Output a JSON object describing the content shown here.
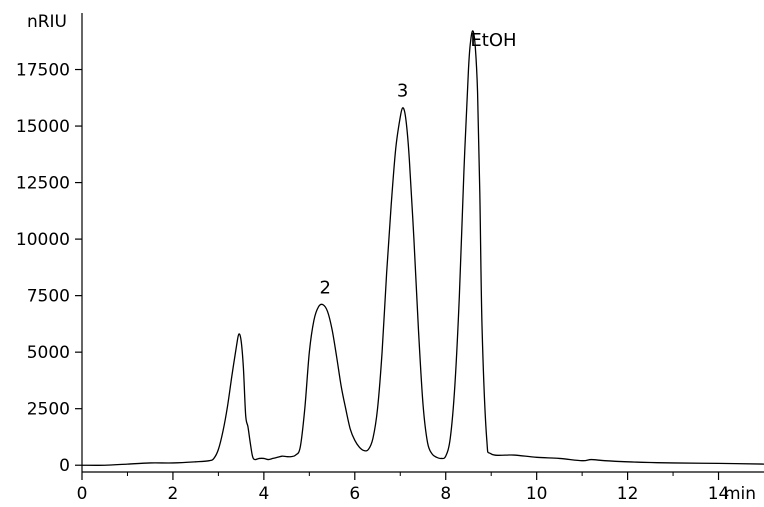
{
  "chart_data": {
    "type": "line",
    "title": "",
    "xlabel": "min",
    "ylabel": "nRIU",
    "xlim": [
      0,
      15
    ],
    "ylim": [
      -300,
      20000
    ],
    "x_ticks": [
      0,
      2,
      4,
      6,
      8,
      10,
      12,
      14
    ],
    "y_ticks": [
      0,
      2500,
      5000,
      7500,
      10000,
      12500,
      15000,
      17500
    ],
    "x_tick_labels": [
      "0",
      "2",
      "4",
      "6",
      "8",
      "10",
      "12",
      "14"
    ],
    "y_tick_labels": [
      "0",
      "2500",
      "5000",
      "7500",
      "10000",
      "12500",
      "15000",
      "17500"
    ],
    "grid": false,
    "legend": "none",
    "line_color": "#000000",
    "series": [
      {
        "x": [
          0.0,
          0.5,
          1.0,
          1.5,
          2.0,
          2.5,
          2.8,
          2.9,
          3.0,
          3.1,
          3.2,
          3.3,
          3.4,
          3.45,
          3.5,
          3.55,
          3.6,
          3.65,
          3.7,
          3.75,
          3.8,
          3.9,
          4.0,
          4.1,
          4.2,
          4.3,
          4.4,
          4.5,
          4.6,
          4.7,
          4.8,
          4.9,
          5.0,
          5.1,
          5.2,
          5.3,
          5.4,
          5.5,
          5.6,
          5.7,
          5.8,
          5.9,
          6.0,
          6.1,
          6.2,
          6.3,
          6.4,
          6.5,
          6.6,
          6.7,
          6.8,
          6.9,
          7.0,
          7.05,
          7.1,
          7.15,
          7.2,
          7.3,
          7.4,
          7.5,
          7.6,
          7.7,
          7.8,
          7.9,
          8.0,
          8.1,
          8.2,
          8.3,
          8.4,
          8.5,
          8.55,
          8.6,
          8.65,
          8.7,
          8.75,
          8.8,
          8.9,
          9.0,
          9.5,
          10.0,
          10.5,
          11.0,
          11.2,
          11.5,
          12.0,
          12.5,
          13.0,
          14.0,
          15.0
        ],
        "y": [
          0,
          0,
          50,
          100,
          100,
          150,
          200,
          300,
          700,
          1500,
          2600,
          4000,
          5300,
          5800,
          5500,
          4300,
          2200,
          1700,
          1000,
          400,
          250,
          300,
          300,
          250,
          300,
          350,
          400,
          380,
          380,
          450,
          800,
          2500,
          5000,
          6400,
          7000,
          7100,
          6800,
          6000,
          4800,
          3500,
          2500,
          1600,
          1100,
          800,
          650,
          700,
          1200,
          2500,
          5000,
          8500,
          11500,
          14000,
          15400,
          15800,
          15600,
          14800,
          13500,
          10000,
          6000,
          2700,
          1000,
          500,
          350,
          300,
          400,
          1200,
          3500,
          7500,
          13000,
          17500,
          18800,
          19200,
          18500,
          16500,
          12000,
          6000,
          1200,
          500,
          450,
          350,
          300,
          200,
          250,
          200,
          150,
          120,
          100,
          80,
          50
        ]
      }
    ],
    "annotations": [
      {
        "text": "2",
        "x": 5.35,
        "y": 7600
      },
      {
        "text": "3",
        "x": 7.05,
        "y": 16300
      },
      {
        "text": "EtOH",
        "x": 9.05,
        "y": 18550
      }
    ]
  }
}
